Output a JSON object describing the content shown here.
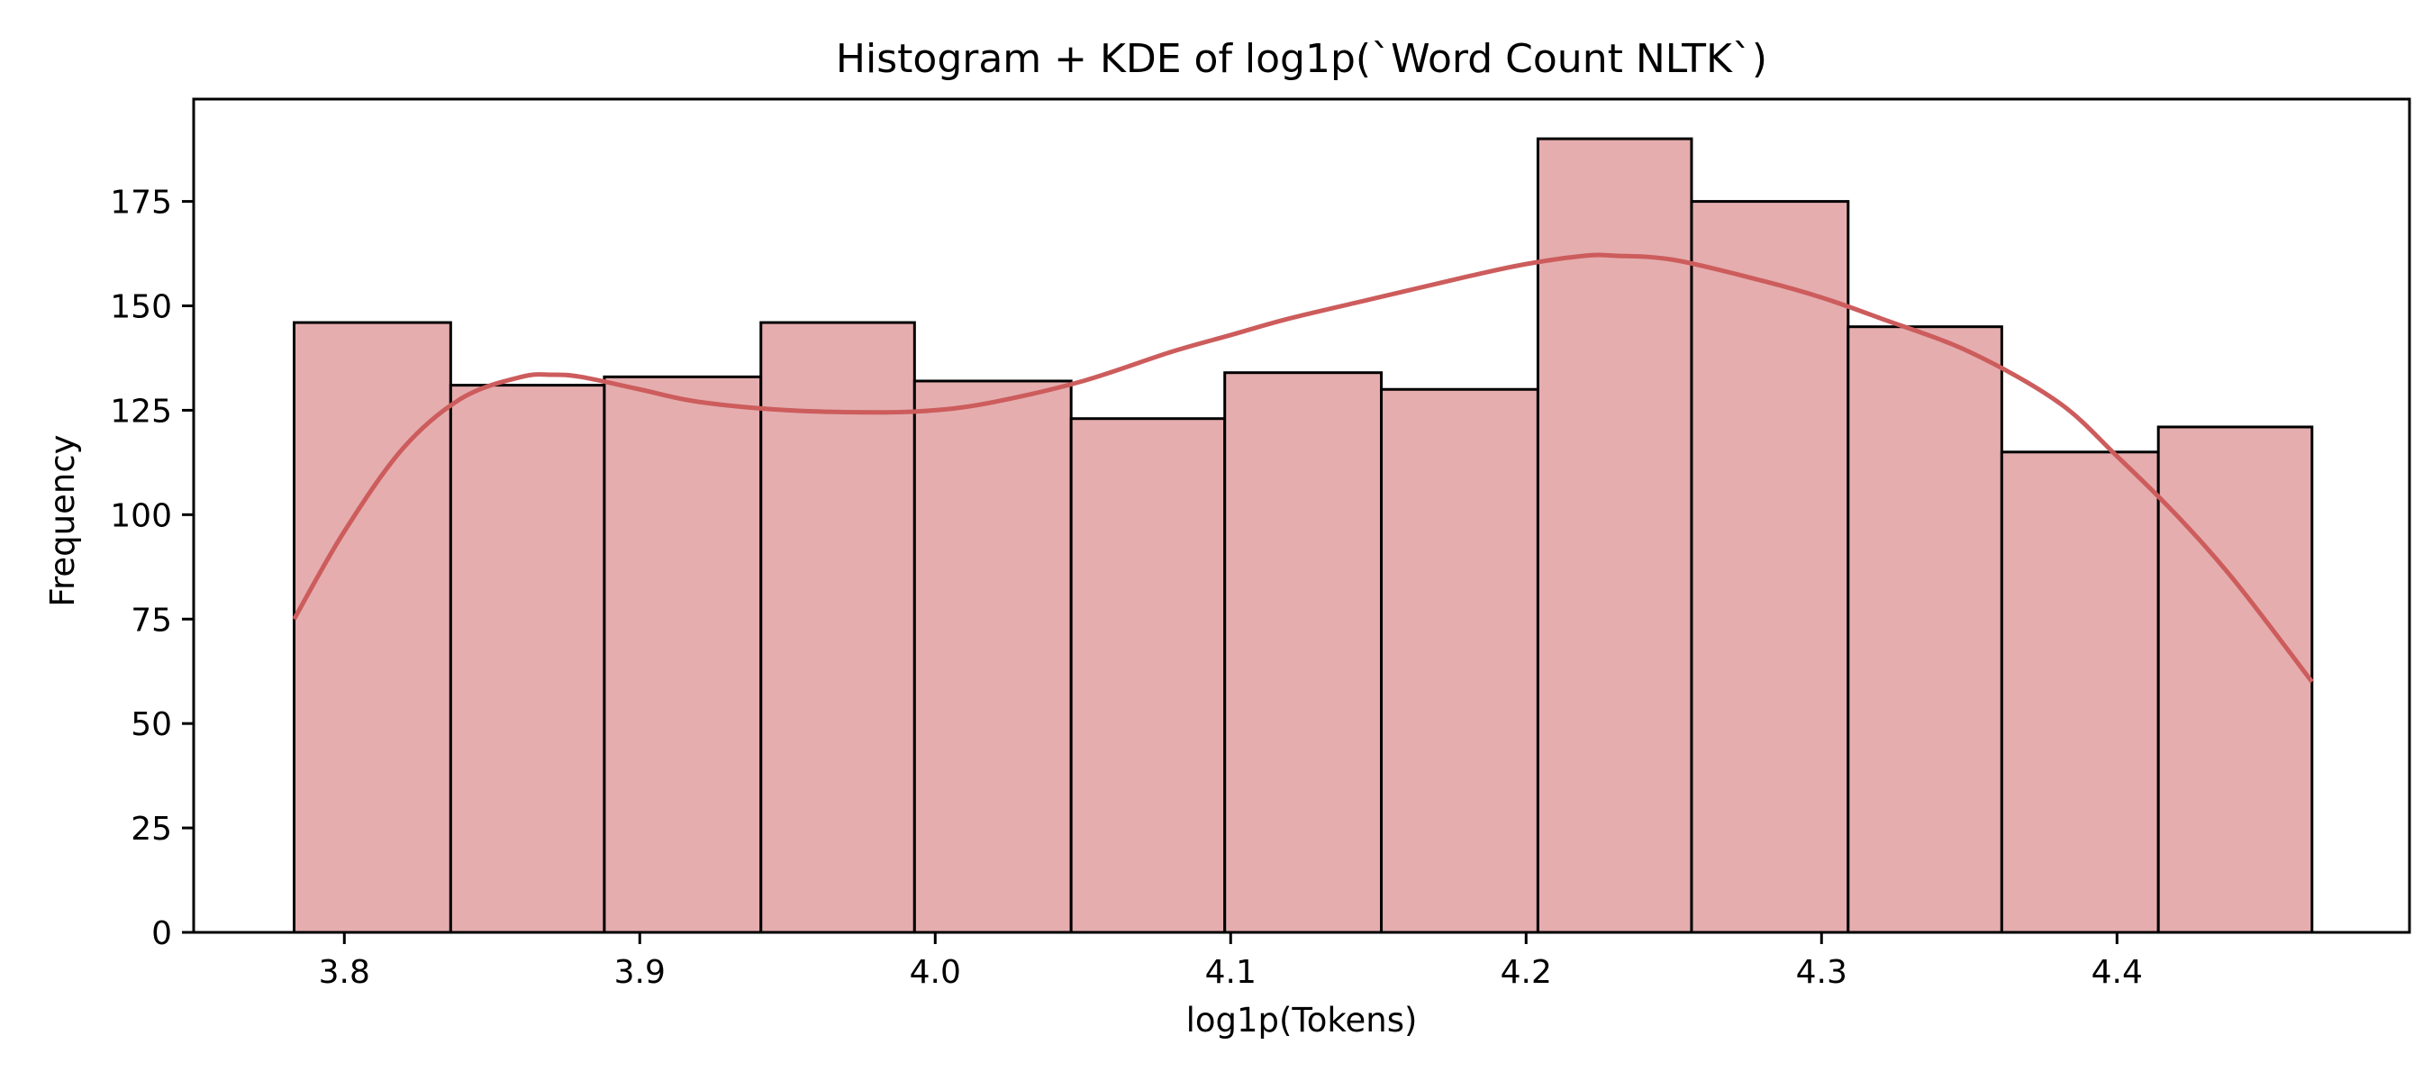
{
  "chart_data": {
    "type": "bar",
    "title": "Histogram + KDE of log1p(`Word Count NLTK`)",
    "xlabel": "log1p(Tokens)",
    "ylabel": "Frequency",
    "xlim": [
      3.749,
      4.499
    ],
    "ylim": [
      0,
      199.5
    ],
    "grid": false,
    "legend": "none",
    "bar_color": "#e5adae",
    "bar_edge_color": "#000000",
    "kde_color": "#cd5c5c",
    "x_ticks": [
      3.8,
      3.9,
      4.0,
      4.1,
      4.2,
      4.3,
      4.4
    ],
    "x_tick_labels": [
      "3.8",
      "3.9",
      "4.0",
      "4.1",
      "4.2",
      "4.3",
      "4.4"
    ],
    "y_ticks": [
      0,
      25,
      50,
      75,
      100,
      125,
      150,
      175
    ],
    "y_tick_labels": [
      "0",
      "25",
      "50",
      "75",
      "100",
      "125",
      "150",
      "175"
    ],
    "bins": [
      {
        "start": 3.783,
        "end": 3.836,
        "value": 146
      },
      {
        "start": 3.836,
        "end": 3.888,
        "value": 131
      },
      {
        "start": 3.888,
        "end": 3.941,
        "value": 133
      },
      {
        "start": 3.941,
        "end": 3.993,
        "value": 146
      },
      {
        "start": 3.993,
        "end": 4.046,
        "value": 132
      },
      {
        "start": 4.046,
        "end": 4.098,
        "value": 123
      },
      {
        "start": 4.098,
        "end": 4.151,
        "value": 134
      },
      {
        "start": 4.151,
        "end": 4.204,
        "value": 130
      },
      {
        "start": 4.204,
        "end": 4.256,
        "value": 190
      },
      {
        "start": 4.256,
        "end": 4.309,
        "value": 175
      },
      {
        "start": 4.309,
        "end": 4.361,
        "value": 145
      },
      {
        "start": 4.361,
        "end": 4.414,
        "value": 115
      },
      {
        "start": 4.414,
        "end": 4.466,
        "value": 121
      }
    ],
    "kde": {
      "x": [
        3.783,
        3.8,
        3.82,
        3.84,
        3.86,
        3.87,
        3.88,
        3.9,
        3.92,
        3.95,
        3.98,
        4.0,
        4.02,
        4.05,
        4.08,
        4.1,
        4.12,
        4.15,
        4.18,
        4.2,
        4.22,
        4.23,
        4.25,
        4.28,
        4.3,
        4.32,
        4.35,
        4.38,
        4.4,
        4.42,
        4.44,
        4.466
      ],
      "y": [
        75,
        96,
        116,
        128,
        133,
        133.5,
        133,
        130,
        127,
        125,
        124.5,
        125,
        127,
        132,
        139,
        143,
        147,
        152,
        157,
        160,
        162,
        162,
        161,
        156,
        152,
        147,
        139,
        127,
        114,
        100,
        84,
        60
      ]
    }
  }
}
